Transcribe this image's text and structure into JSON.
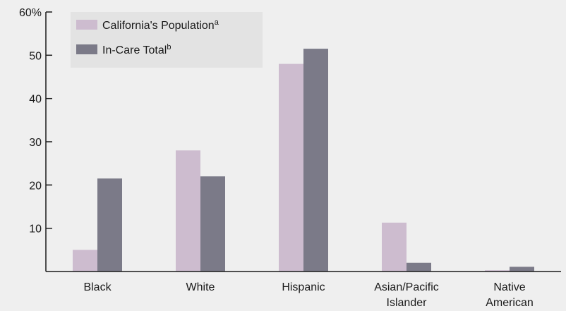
{
  "chart_data": {
    "type": "bar",
    "categories": [
      [
        "Black"
      ],
      [
        "White"
      ],
      [
        "Hispanic"
      ],
      [
        "Asian/Pacific",
        "Islander"
      ],
      [
        "Native",
        "American"
      ]
    ],
    "series": [
      {
        "name": "California's Population",
        "name_sup": "a",
        "color": "#cdbccf",
        "values": [
          5,
          28,
          48,
          11.3,
          0.3
        ]
      },
      {
        "name": "In-Care Total",
        "name_sup": "b",
        "color": "#7b7a88",
        "values": [
          21.5,
          22,
          51.5,
          2,
          1.1
        ]
      }
    ],
    "ylim": [
      0,
      60
    ],
    "yticks": [
      10,
      20,
      30,
      40,
      50,
      60
    ],
    "ytick_labels": [
      "10",
      "20",
      "30",
      "40",
      "50",
      "60%"
    ],
    "xlabel": "",
    "ylabel": "",
    "legend": "top-left",
    "grid": false
  },
  "colors": {
    "background": "#efefef",
    "legend_background": "#e3e3e3",
    "axis": "#1a1a1a"
  }
}
